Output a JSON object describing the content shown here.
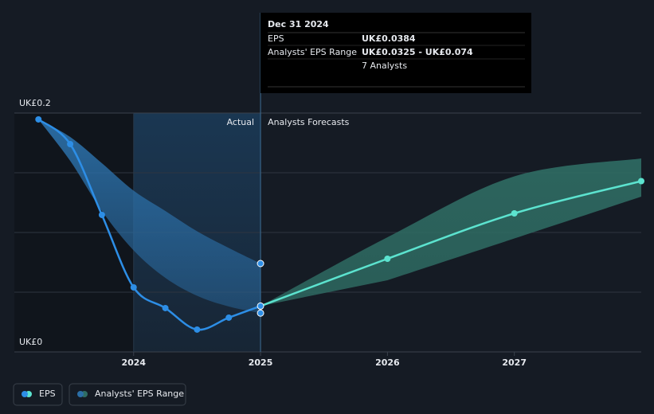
{
  "chart_data": {
    "type": "line",
    "x": [
      2023.25,
      2023.5,
      2023.75,
      2024,
      2024.25,
      2024.5,
      2024.75,
      2025,
      2026,
      2027,
      2028
    ],
    "xlim": [
      2023.06,
      2028
    ],
    "xticks": [
      2024,
      2025,
      2026,
      2027
    ],
    "ylim": [
      0,
      0.2
    ],
    "yticks": [
      {
        "value": 0,
        "label": "UK£0"
      },
      {
        "value": 0.2,
        "label": "UK£0.2"
      }
    ],
    "grid": true,
    "minor_grid": [
      0.05,
      0.1,
      0.15
    ],
    "highlight_start": 2024,
    "divider": 2025,
    "labels": {
      "actual": "Actual",
      "forecast": "Analysts Forecasts"
    },
    "series": [
      {
        "name": "EPS",
        "color": "#2d8ee6",
        "forecast_color": "#5ce3cf",
        "values": [
          0.1947,
          0.174,
          0.1147,
          0.054,
          0.0367,
          0.0187,
          0.0287,
          0.0384,
          0.078,
          0.116,
          0.143
        ]
      },
      {
        "name": "Analysts' EPS Range",
        "color": "#2b6ea6",
        "forecast_color": "#2f6d64",
        "low": [
          0.1947,
          0.16,
          0.118,
          0.085,
          0.062,
          0.047,
          0.038,
          0.0325,
          0.06,
          0.095,
          0.13
        ],
        "high": [
          0.1947,
          0.18,
          0.158,
          0.135,
          0.118,
          0.101,
          0.087,
          0.074,
          0.096,
          0.147,
          0.162
        ]
      }
    ],
    "tooltip": {
      "date": "Dec 31 2024",
      "rows": [
        {
          "label": "EPS",
          "value": "UK£0.0384"
        },
        {
          "label": "Analysts' EPS Range",
          "value": "UK£0.0325 - UK£0.074"
        },
        {
          "value": "7 Analysts"
        }
      ]
    }
  }
}
